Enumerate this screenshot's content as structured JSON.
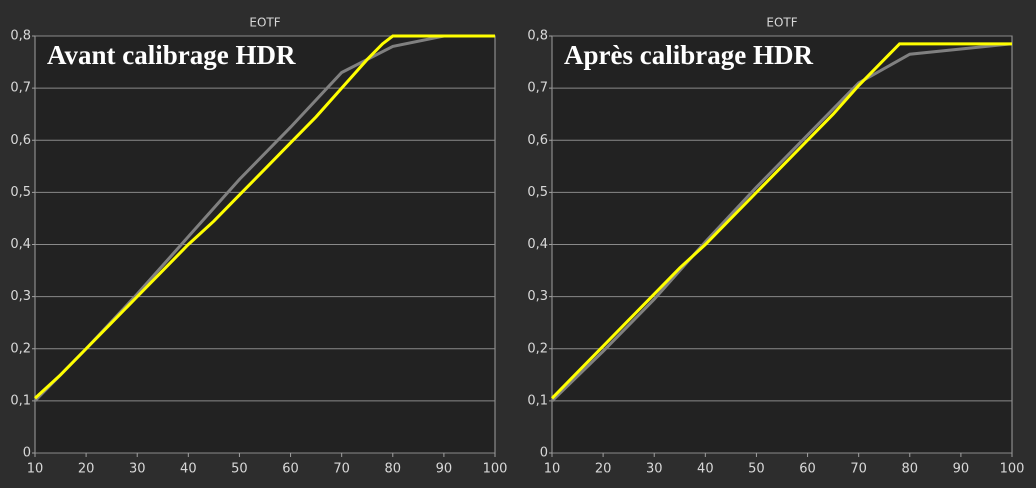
{
  "chart_data": [
    {
      "type": "line",
      "title": "EOTF",
      "annotation": "Avant calibrage HDR",
      "xlim": [
        10,
        100
      ],
      "xticks": [
        10,
        20,
        30,
        40,
        50,
        60,
        70,
        80,
        90,
        100
      ],
      "ylim": [
        0,
        0.8
      ],
      "yticks": [
        0,
        {
          "value": 0.1,
          "label": "0,1"
        },
        {
          "value": 0.2,
          "label": "0,2"
        },
        {
          "value": 0.3,
          "label": "0,3"
        },
        {
          "value": 0.4,
          "label": "0,4"
        },
        {
          "value": 0.5,
          "label": "0,5"
        },
        {
          "value": 0.6,
          "label": "0,6"
        },
        {
          "value": 0.7,
          "label": "0,7"
        },
        {
          "value": 0.8,
          "label": "0,8"
        }
      ],
      "grid": true,
      "series": [
        {
          "color": "#808080",
          "x": [
            10,
            20,
            30,
            40,
            50,
            60,
            70,
            80,
            90,
            100
          ],
          "values": [
            0.1,
            0.2,
            0.305,
            0.415,
            0.525,
            0.625,
            0.73,
            0.78,
            0.8,
            0.8
          ]
        },
        {
          "color": "#ffff00",
          "x": [
            10,
            15,
            20,
            25,
            30,
            35,
            40,
            45,
            50,
            55,
            60,
            65,
            70,
            75,
            78,
            80,
            90,
            100
          ],
          "values": [
            0.105,
            0.15,
            0.2,
            0.25,
            0.3,
            0.35,
            0.4,
            0.445,
            0.495,
            0.545,
            0.595,
            0.645,
            0.7,
            0.755,
            0.785,
            0.8,
            0.8,
            0.8
          ]
        }
      ]
    },
    {
      "type": "line",
      "title": "EOTF",
      "annotation": "Après calibrage HDR",
      "xlim": [
        10,
        100
      ],
      "xticks": [
        10,
        20,
        30,
        40,
        50,
        60,
        70,
        80,
        90,
        100
      ],
      "ylim": [
        0,
        0.8
      ],
      "yticks": [
        0,
        {
          "value": 0.1,
          "label": "0,1"
        },
        {
          "value": 0.2,
          "label": "0,2"
        },
        {
          "value": 0.3,
          "label": "0,3"
        },
        {
          "value": 0.4,
          "label": "0,4"
        },
        {
          "value": 0.5,
          "label": "0,5"
        },
        {
          "value": 0.6,
          "label": "0,6"
        },
        {
          "value": 0.7,
          "label": "0,7"
        },
        {
          "value": 0.8,
          "label": "0,8"
        }
      ],
      "grid": true,
      "series": [
        {
          "color": "#808080",
          "x": [
            10,
            20,
            30,
            40,
            50,
            60,
            70,
            80,
            90,
            100
          ],
          "values": [
            0.1,
            0.195,
            0.295,
            0.405,
            0.51,
            0.61,
            0.71,
            0.765,
            0.775,
            0.785
          ]
        },
        {
          "color": "#ffff00",
          "x": [
            10,
            15,
            20,
            25,
            30,
            35,
            40,
            45,
            50,
            55,
            60,
            65,
            70,
            75,
            78,
            80,
            90,
            100
          ],
          "values": [
            0.105,
            0.155,
            0.205,
            0.255,
            0.305,
            0.355,
            0.4,
            0.45,
            0.5,
            0.55,
            0.6,
            0.65,
            0.705,
            0.755,
            0.785,
            0.785,
            0.785,
            0.785
          ]
        }
      ]
    }
  ]
}
